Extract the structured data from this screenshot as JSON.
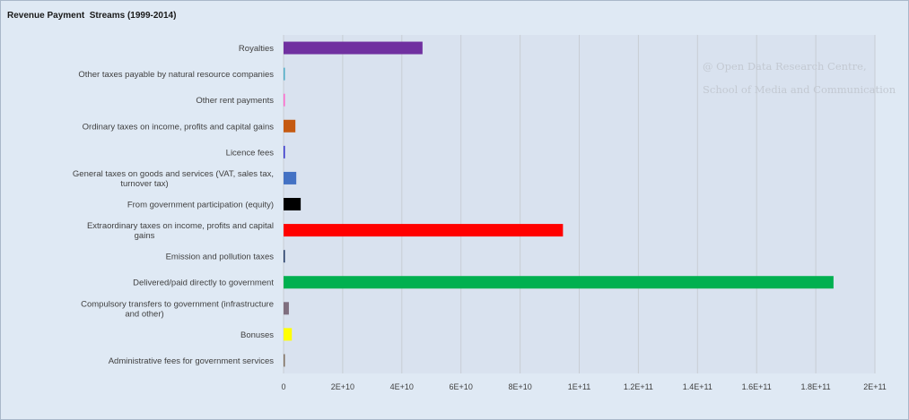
{
  "chart_data": {
    "type": "bar",
    "orientation": "horizontal",
    "title": "Revenue Payment  Streams (1999-2014)",
    "categories": [
      "Royalties",
      "Other taxes payable by natural resource companies",
      "Other rent payments",
      "Ordinary taxes on income, profits and capital gains",
      "Licence fees",
      "General taxes on goods and services (VAT, sales tax, turnover tax)",
      "From government participation (equity)",
      "Extraordinary taxes on income, profits and capital gains",
      "Emission and pollution taxes",
      "Delivered/paid directly to government",
      "Compulsory transfers to government (infrastructure and other)",
      "Bonuses",
      "Administrative fees for government services"
    ],
    "values": [
      47000000000,
      400000000,
      400000000,
      4000000000,
      400000000,
      4300000000,
      5800000000,
      94500000000,
      400000000,
      186000000000,
      1800000000,
      2800000000,
      300000000
    ],
    "colors": [
      "#7030a0",
      "#4bacc6",
      "#ff66cc",
      "#c55a11",
      "#3333cc",
      "#4472c4",
      "#000000",
      "#ff0000",
      "#1f3864",
      "#00b050",
      "#7f6f7f",
      "#ffff00",
      "#7f6f5f"
    ],
    "xlim": [
      0,
      200000000000
    ],
    "xticks": [
      "0",
      "2E+10",
      "4E+10",
      "6E+10",
      "8E+10",
      "1E+11",
      "1.2E+11",
      "1.4E+11",
      "1.6E+11",
      "1.8E+11",
      "2E+11"
    ],
    "grid": true,
    "xlabel": "",
    "ylabel": ""
  },
  "watermark": {
    "line1": "@ Open Data Research Centre,",
    "line2": "School of Media and Communication"
  }
}
